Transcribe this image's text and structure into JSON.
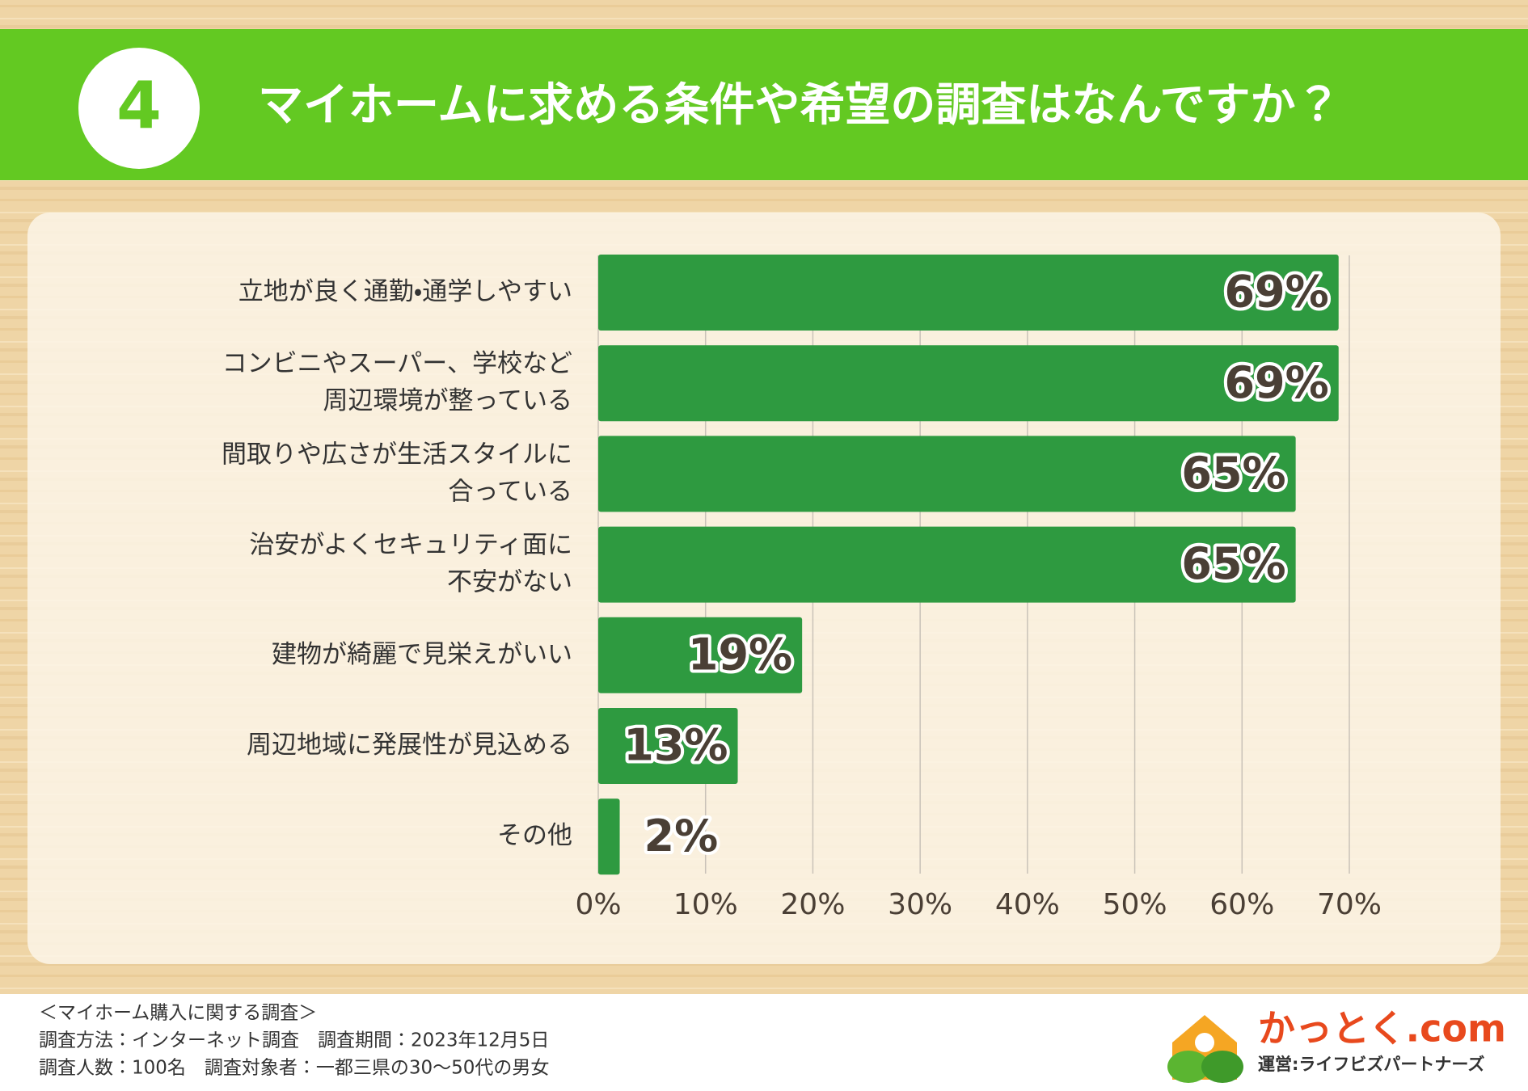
{
  "header": {
    "number": "4",
    "title": "マイホームに求める条件や希望の調査はなんですか？"
  },
  "chart_data": {
    "type": "bar",
    "orientation": "horizontal",
    "categories": [
      "立地が良く通勤・通学しやすい",
      "コンビニやスーパー、学校など\n周辺環境が整っている",
      "間取りや広さが生活スタイルに\n合っている",
      "治安がよくセキュリティ面に\n不安がない",
      "建物が綺麗で見栄えがいい",
      "周辺地域に発展性が見込める",
      "その他"
    ],
    "values": [
      69,
      69,
      65,
      65,
      19,
      13,
      2
    ],
    "value_labels": [
      "69%",
      "69%",
      "65%",
      "65%",
      "19%",
      "13%",
      "2%"
    ],
    "color": "#2e9a40",
    "xlim": [
      0,
      70
    ],
    "xticks": [
      {
        "value": 0,
        "label": "0%"
      },
      {
        "value": 10,
        "label": "10%"
      },
      {
        "value": 20,
        "label": "20%"
      },
      {
        "value": 30,
        "label": "30%"
      },
      {
        "value": 40,
        "label": "40%"
      },
      {
        "value": 50,
        "label": "50%"
      },
      {
        "value": 60,
        "label": "60%"
      },
      {
        "value": 70,
        "label": "70%"
      }
    ],
    "grid": true
  },
  "footer": {
    "lines": [
      "＜マイホーム購入に関する調査＞",
      "調査方法：インターネット調査　調査期間：2023年12月5日",
      "調査人数：100名　調査対象者：一都三県の30～50代の男女"
    ],
    "logo": "かっとく.com",
    "operator": "運営:ライフビズパートナーズ"
  }
}
